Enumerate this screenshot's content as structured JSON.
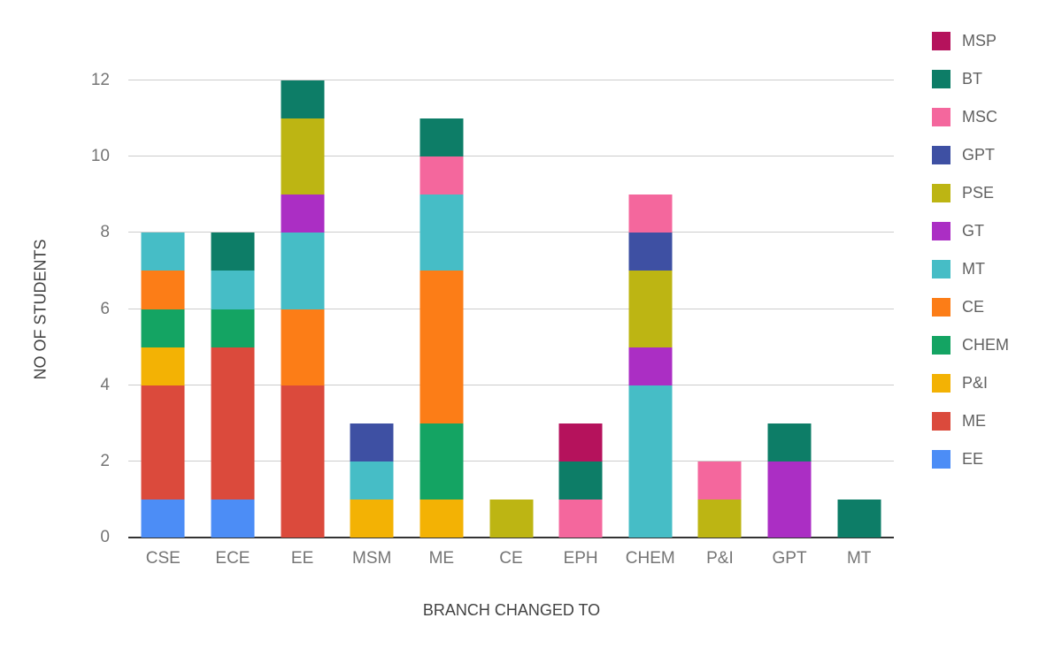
{
  "chart_data": {
    "type": "bar",
    "stacked": true,
    "title": "",
    "xlabel": "BRANCH CHANGED TO",
    "ylabel": "NO OF STUDENTS",
    "ylim": [
      0,
      12
    ],
    "yticks": [
      0,
      2,
      4,
      6,
      8,
      10,
      12
    ],
    "grid": true,
    "legend_position": "right",
    "categories": [
      "CSE",
      "ECE",
      "EE",
      "MSM",
      "ME",
      "CE",
      "EPH",
      "CHEM",
      "P&I",
      "GPT",
      "MT"
    ],
    "series": [
      {
        "name": "EE",
        "color": "#4c8df6",
        "values": [
          1,
          1,
          0,
          0,
          0,
          0,
          0,
          0,
          0,
          0,
          0
        ]
      },
      {
        "name": "ME",
        "color": "#db4a3c",
        "values": [
          3,
          4,
          4,
          0,
          0,
          0,
          0,
          0,
          0,
          0,
          0
        ]
      },
      {
        "name": "P&I",
        "color": "#f3b204",
        "values": [
          1,
          0,
          0,
          1,
          1,
          0,
          0,
          0,
          0,
          0,
          0
        ]
      },
      {
        "name": "CHEM",
        "color": "#14a463",
        "values": [
          1,
          1,
          0,
          0,
          2,
          0,
          0,
          0,
          0,
          0,
          0
        ]
      },
      {
        "name": "CE",
        "color": "#fc7d17",
        "values": [
          1,
          0,
          2,
          0,
          4,
          0,
          0,
          0,
          0,
          0,
          0
        ]
      },
      {
        "name": "MT",
        "color": "#46bdc6",
        "values": [
          1,
          1,
          2,
          1,
          2,
          0,
          0,
          4,
          0,
          0,
          0
        ]
      },
      {
        "name": "GT",
        "color": "#ab2ec4",
        "values": [
          0,
          0,
          1,
          0,
          0,
          0,
          0,
          1,
          0,
          2,
          0
        ]
      },
      {
        "name": "PSE",
        "color": "#bdb513",
        "values": [
          0,
          0,
          2,
          0,
          0,
          1,
          0,
          2,
          1,
          0,
          0
        ]
      },
      {
        "name": "GPT",
        "color": "#3e50a3",
        "values": [
          0,
          0,
          0,
          1,
          0,
          0,
          0,
          1,
          0,
          0,
          0
        ]
      },
      {
        "name": "MSC",
        "color": "#f4679d",
        "values": [
          0,
          0,
          0,
          0,
          1,
          0,
          1,
          1,
          1,
          0,
          0
        ]
      },
      {
        "name": "BT",
        "color": "#0d7d67",
        "values": [
          0,
          1,
          1,
          0,
          1,
          0,
          1,
          0,
          0,
          1,
          1
        ]
      },
      {
        "name": "MSP",
        "color": "#b5125c",
        "values": [
          0,
          0,
          0,
          0,
          0,
          0,
          1,
          0,
          0,
          0,
          0
        ]
      }
    ],
    "legend": [
      "MSP",
      "BT",
      "MSC",
      "GPT",
      "PSE",
      "GT",
      "MT",
      "CE",
      "CHEM",
      "P&I",
      "ME",
      "EE"
    ],
    "style": {
      "background": "#ffffff",
      "grid_color": "#cccccc",
      "axis_color": "#333333",
      "tick_label_color": "#757575",
      "axis_title_color": "#424242",
      "legend_text_color": "#616161"
    }
  }
}
